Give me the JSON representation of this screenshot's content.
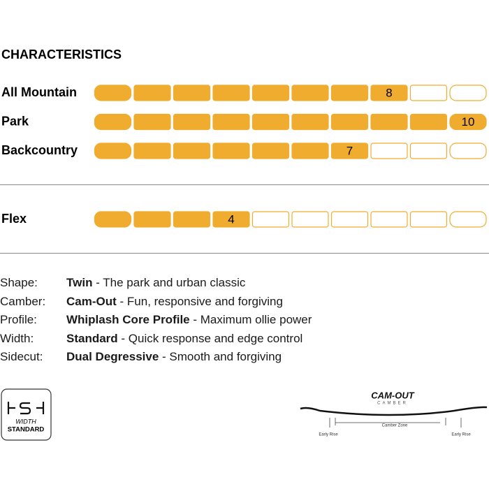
{
  "header": {
    "title": "CHARACTERISTICS"
  },
  "ratings": [
    {
      "label": "All Mountain",
      "value": 8
    },
    {
      "label": "Park",
      "value": 10
    },
    {
      "label": "Backcountry",
      "value": 7
    }
  ],
  "flex": {
    "label": "Flex",
    "value": 4
  },
  "specs": [
    {
      "key": "Shape:",
      "name": "Twin",
      "desc": "- The park and urban classic"
    },
    {
      "key": "Camber:",
      "name": "Cam-Out",
      "desc": "- Fun, responsive and forgiving"
    },
    {
      "key": "Profile:",
      "name": "Whiplash Core Profile",
      "desc": "- Maximum ollie power"
    },
    {
      "key": "Width:",
      "name": "Standard",
      "desc": "- Quick response and edge control"
    },
    {
      "key": "Sidecut:",
      "name": "Dual Degressive",
      "desc": "- Smooth and forgiving"
    }
  ],
  "badge": {
    "line1": "WIDTH",
    "line2": "STANDARD"
  },
  "camber": {
    "logo": "CAM-OUT",
    "sub": "CAMBER",
    "zone": "Camber Zone",
    "left": "Early Rise",
    "right": "Early Rise"
  }
}
